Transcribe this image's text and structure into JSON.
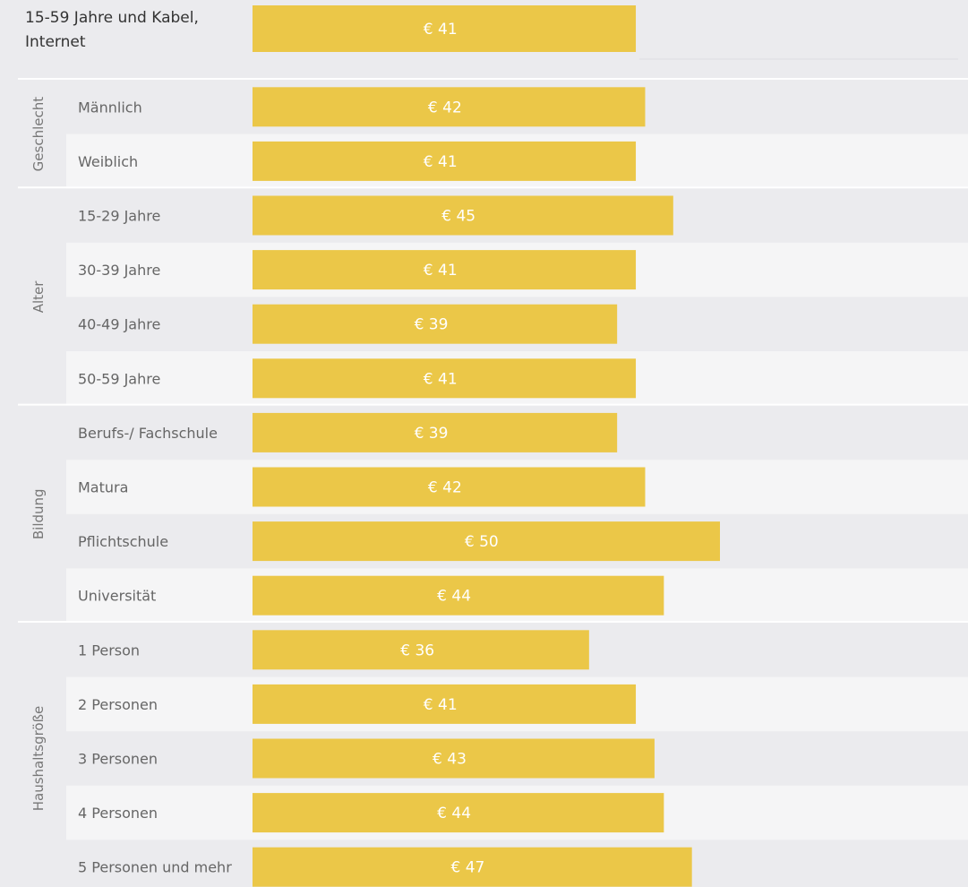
{
  "chart_data": {
    "type": "bar",
    "orientation": "horizontal",
    "value_prefix": "€ ",
    "colors": {
      "bar": "#ebc748",
      "background": "#ebebee",
      "row_alt": "#f5f5f6",
      "separator": "#ffffff"
    },
    "header_row": {
      "label": "15-59 Jahre und Kabel, Internet",
      "value": 41
    },
    "groups": [
      {
        "name": "Geschlecht",
        "categories": [
          "Männlich",
          "Weiblich"
        ],
        "values": [
          42,
          41
        ]
      },
      {
        "name": "Alter",
        "categories": [
          "15-29 Jahre",
          "30-39 Jahre",
          "40-49 Jahre",
          "50-59 Jahre"
        ],
        "values": [
          45,
          41,
          39,
          41
        ]
      },
      {
        "name": "Bildung",
        "categories": [
          "Berufs-/ Fachschule",
          "Matura",
          "Pflichtschule",
          "Universität"
        ],
        "values": [
          39,
          42,
          50,
          44
        ]
      },
      {
        "name": "Haushaltsgröße",
        "categories": [
          "1 Person",
          "2 Personen",
          "3 Personen",
          "4 Personen",
          "5 Personen und mehr"
        ],
        "values": [
          36,
          41,
          43,
          44,
          47
        ]
      }
    ]
  }
}
